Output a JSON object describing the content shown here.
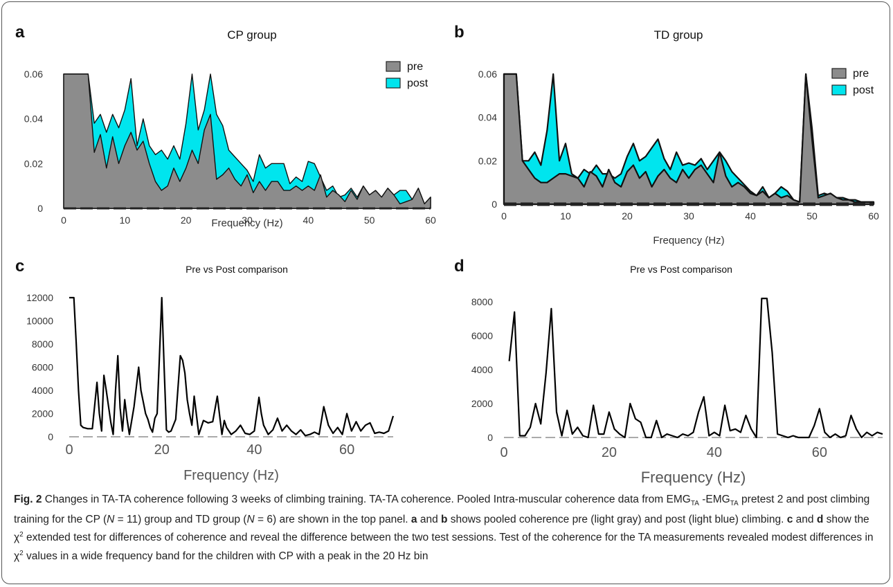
{
  "chart_data": [
    {
      "panel": "a",
      "type": "area",
      "title": "CP group",
      "xlabel": "Frequency (Hz)",
      "ylabel": "",
      "xlim": [
        0,
        60
      ],
      "ylim": [
        0,
        0.06
      ],
      "xticks": [
        "0",
        "10",
        "20",
        "30",
        "40",
        "50",
        "60"
      ],
      "yticks": [
        "0",
        "0.02",
        "0.04",
        "0.06"
      ],
      "legend": {
        "position": "top-right",
        "entries": [
          "pre",
          "post"
        ]
      },
      "series": [
        {
          "name": "pre",
          "color": "#8c8c8c",
          "x": [
            0,
            1,
            2,
            3,
            4,
            5,
            6,
            7,
            8,
            9,
            10,
            11,
            12,
            13,
            14,
            15,
            16,
            17,
            18,
            19,
            20,
            21,
            22,
            23,
            24,
            25,
            26,
            27,
            28,
            29,
            30,
            31,
            32,
            33,
            34,
            35,
            36,
            37,
            38,
            39,
            40,
            41,
            42,
            43,
            44,
            45,
            46,
            47,
            48,
            49,
            50,
            51,
            52,
            53,
            54,
            55,
            56,
            57,
            58,
            59,
            60
          ],
          "values": [
            0.06,
            0.06,
            0.06,
            0.06,
            0.06,
            0.025,
            0.033,
            0.018,
            0.032,
            0.02,
            0.028,
            0.034,
            0.026,
            0.03,
            0.02,
            0.012,
            0.008,
            0.01,
            0.018,
            0.012,
            0.018,
            0.026,
            0.02,
            0.035,
            0.042,
            0.013,
            0.015,
            0.018,
            0.013,
            0.01,
            0.015,
            0.007,
            0.012,
            0.008,
            0.012,
            0.012,
            0.008,
            0.008,
            0.01,
            0.008,
            0.01,
            0.008,
            0.015,
            0.005,
            0.008,
            0.006,
            0.003,
            0.008,
            0.004,
            0.01,
            0.006,
            0.008,
            0.005,
            0.009,
            0.006,
            0.002,
            0.003,
            0.004,
            0.009,
            0.002,
            0.005
          ]
        },
        {
          "name": "post",
          "color": "#00e5ee",
          "x": [
            0,
            1,
            2,
            3,
            4,
            5,
            6,
            7,
            8,
            9,
            10,
            11,
            12,
            13,
            14,
            15,
            16,
            17,
            18,
            19,
            20,
            21,
            22,
            23,
            24,
            25,
            26,
            27,
            28,
            29,
            30,
            31,
            32,
            33,
            34,
            35,
            36,
            37,
            38,
            39,
            40,
            41,
            42,
            43,
            44,
            45,
            46,
            47,
            48,
            49,
            50,
            51,
            52,
            53,
            54,
            55,
            56,
            57,
            58,
            59,
            60
          ],
          "values": [
            0.06,
            0.06,
            0.06,
            0.06,
            0.06,
            0.038,
            0.042,
            0.034,
            0.042,
            0.036,
            0.044,
            0.058,
            0.028,
            0.04,
            0.028,
            0.024,
            0.026,
            0.022,
            0.028,
            0.022,
            0.038,
            0.06,
            0.035,
            0.044,
            0.06,
            0.042,
            0.037,
            0.026,
            0.023,
            0.02,
            0.017,
            0.012,
            0.024,
            0.018,
            0.02,
            0.02,
            0.02,
            0.011,
            0.014,
            0.012,
            0.021,
            0.02,
            0.014,
            0.008,
            0.01,
            0.005,
            0.006,
            0.009,
            0.005,
            0.01,
            0.006,
            0.008,
            0.005,
            0.009,
            0.006,
            0.008,
            0.008,
            0.004,
            0.009,
            0.002,
            0.005
          ]
        }
      ]
    },
    {
      "panel": "b",
      "type": "area",
      "title": "TD group",
      "xlabel": "Frequency (Hz)",
      "ylabel": "",
      "xlim": [
        0,
        60
      ],
      "ylim": [
        0,
        0.06
      ],
      "xticks": [
        "0",
        "10",
        "20",
        "30",
        "40",
        "50",
        "60"
      ],
      "yticks": [
        "0",
        "0.02",
        "0.04",
        "0.06"
      ],
      "legend": {
        "position": "top-right",
        "entries": [
          "pre",
          "post"
        ]
      },
      "series": [
        {
          "name": "pre",
          "color": "#8c8c8c",
          "x": [
            0,
            1,
            2,
            3,
            4,
            5,
            6,
            7,
            8,
            9,
            10,
            11,
            12,
            13,
            14,
            15,
            16,
            17,
            18,
            19,
            20,
            21,
            22,
            23,
            24,
            25,
            26,
            27,
            28,
            29,
            30,
            31,
            32,
            33,
            34,
            35,
            36,
            37,
            38,
            39,
            40,
            41,
            42,
            43,
            44,
            45,
            46,
            47,
            48,
            49,
            50,
            51,
            52,
            53,
            54,
            55,
            56,
            57,
            58,
            59,
            60
          ],
          "values": [
            0.06,
            0.06,
            0.06,
            0.02,
            0.016,
            0.012,
            0.01,
            0.01,
            0.012,
            0.014,
            0.014,
            0.013,
            0.012,
            0.008,
            0.015,
            0.013,
            0.008,
            0.016,
            0.01,
            0.008,
            0.015,
            0.018,
            0.012,
            0.015,
            0.008,
            0.013,
            0.016,
            0.012,
            0.01,
            0.016,
            0.012,
            0.016,
            0.018,
            0.014,
            0.01,
            0.024,
            0.013,
            0.008,
            0.01,
            0.008,
            0.005,
            0.004,
            0.006,
            0.003,
            0.005,
            0.003,
            0.004,
            0.002,
            0.001,
            0.06,
            0.03,
            0.003,
            0.004,
            0.005,
            0.003,
            0.002,
            0.002,
            0.001,
            0.001,
            0.001,
            0.001
          ]
        },
        {
          "name": "post",
          "color": "#00e5ee",
          "x": [
            0,
            1,
            2,
            3,
            4,
            5,
            6,
            7,
            8,
            9,
            10,
            11,
            12,
            13,
            14,
            15,
            16,
            17,
            18,
            19,
            20,
            21,
            22,
            23,
            24,
            25,
            26,
            27,
            28,
            29,
            30,
            31,
            32,
            33,
            34,
            35,
            36,
            37,
            38,
            39,
            40,
            41,
            42,
            43,
            44,
            45,
            46,
            47,
            48,
            49,
            50,
            51,
            52,
            53,
            54,
            55,
            56,
            57,
            58,
            59,
            60
          ],
          "values": [
            0.06,
            0.06,
            0.06,
            0.02,
            0.02,
            0.024,
            0.018,
            0.034,
            0.06,
            0.02,
            0.028,
            0.014,
            0.012,
            0.016,
            0.014,
            0.018,
            0.014,
            0.014,
            0.012,
            0.014,
            0.022,
            0.028,
            0.02,
            0.022,
            0.026,
            0.03,
            0.021,
            0.016,
            0.024,
            0.018,
            0.019,
            0.018,
            0.021,
            0.016,
            0.02,
            0.024,
            0.02,
            0.015,
            0.012,
            0.009,
            0.006,
            0.004,
            0.008,
            0.003,
            0.005,
            0.008,
            0.006,
            0.002,
            0.001,
            0.06,
            0.035,
            0.004,
            0.005,
            0.004,
            0.003,
            0.003,
            0.002,
            0.002,
            0.001,
            0.001,
            0.001
          ]
        }
      ]
    },
    {
      "panel": "c",
      "type": "line",
      "title": "Pre vs Post comparison",
      "xlabel": "Frequency (Hz)",
      "ylabel": "",
      "xlim": [
        0,
        70
      ],
      "ylim": [
        0,
        12000
      ],
      "xticks": [
        "0",
        "20",
        "40",
        "60"
      ],
      "yticks": [
        "0",
        "2000",
        "4000",
        "6000",
        "8000",
        "10000",
        "12000"
      ],
      "series": [
        {
          "name": "",
          "color": "#000000",
          "x": [
            0,
            0.5,
            1,
            1.5,
            2,
            2.5,
            3,
            4,
            5,
            6,
            6.5,
            7,
            7.5,
            8,
            9,
            9.5,
            10,
            10.5,
            11,
            11.5,
            12,
            12.5,
            13,
            14,
            15,
            15.5,
            16,
            16.5,
            17,
            17.5,
            18,
            18.5,
            19,
            20,
            20.5,
            21,
            21.5,
            22,
            23,
            24,
            24.5,
            25,
            25.5,
            26,
            26.5,
            27,
            28,
            29,
            30,
            31,
            32,
            33,
            33.5,
            34,
            35,
            36,
            37,
            38,
            39,
            40,
            41,
            41.5,
            42,
            43,
            44,
            45,
            46,
            47,
            48,
            49,
            50,
            51,
            52,
            53,
            54,
            55,
            56,
            57,
            58,
            59,
            60,
            61,
            62,
            63,
            64,
            65,
            66,
            67,
            68,
            69,
            70
          ],
          "values": [
            12000,
            12000,
            12000,
            8200,
            4000,
            1000,
            800,
            700,
            700,
            4700,
            2000,
            500,
            5300,
            4000,
            1200,
            200,
            4000,
            7000,
            2500,
            500,
            3200,
            1500,
            200,
            2600,
            6000,
            4000,
            3000,
            2000,
            1500,
            800,
            400,
            1600,
            2000,
            12000,
            6000,
            600,
            400,
            500,
            1500,
            7000,
            6600,
            5500,
            3200,
            2000,
            1000,
            3500,
            200,
            1400,
            1200,
            1300,
            3500,
            200,
            1400,
            800,
            200,
            500,
            1000,
            300,
            200,
            500,
            3400,
            2000,
            1000,
            200,
            600,
            1600,
            500,
            1000,
            500,
            200,
            600,
            100,
            200,
            400,
            200,
            2600,
            1000,
            300,
            800,
            200,
            2000,
            500,
            1300,
            500,
            1000,
            1200,
            300,
            400,
            300,
            500,
            1800
          ]
        }
      ]
    },
    {
      "panel": "d",
      "type": "line",
      "title": "Pre vs Post comparison",
      "xlabel": "Frequency (Hz)",
      "ylabel": "",
      "xlim": [
        0,
        72
      ],
      "ylim": [
        0,
        8000
      ],
      "xticks": [
        "0",
        "20",
        "40",
        "60"
      ],
      "yticks": [
        "0",
        "2000",
        "4000",
        "6000",
        "8000"
      ],
      "series": [
        {
          "name": "",
          "color": "#000000",
          "x": [
            1,
            2,
            3,
            4,
            5,
            6,
            7,
            8,
            9,
            10,
            11,
            12,
            13,
            14,
            15,
            16,
            17,
            18,
            19,
            20,
            21,
            22,
            23,
            24,
            25,
            26,
            27,
            28,
            29,
            30,
            31,
            32,
            33,
            34,
            35,
            36,
            37,
            38,
            39,
            40,
            41,
            42,
            43,
            44,
            45,
            46,
            47,
            48,
            49,
            50,
            51,
            52,
            53,
            54,
            55,
            56,
            57,
            58,
            59,
            60,
            61,
            62,
            63,
            64,
            65,
            66,
            67,
            68,
            69,
            70,
            71,
            72
          ],
          "values": [
            4500,
            7400,
            100,
            100,
            600,
            2000,
            800,
            3800,
            7600,
            1500,
            100,
            1600,
            200,
            600,
            100,
            0,
            1900,
            200,
            200,
            1500,
            500,
            200,
            0,
            2000,
            1100,
            900,
            0,
            0,
            1000,
            0,
            200,
            100,
            0,
            200,
            100,
            300,
            1500,
            2400,
            100,
            300,
            100,
            1900,
            400,
            500,
            300,
            1300,
            500,
            0,
            8200,
            8200,
            5000,
            200,
            100,
            0,
            100,
            0,
            0,
            0,
            700,
            1700,
            300,
            0,
            200,
            0,
            100,
            1300,
            500,
            0,
            300,
            100,
            300,
            200
          ]
        }
      ]
    }
  ],
  "caption": {
    "fig_label": "Fig. 2",
    "p1": "Changes in TA-TA coherence following 3 weeks of climbing training. TA-TA coherence. Pooled Intra-muscular coherence data from EMG",
    "sub_ta": "TA",
    "p2": "-EMG",
    "p3": "pretest 2 and post climbing training for the CP (",
    "n_eq1": "N",
    "p4": "= 11) group and TD group (",
    "n_eq2": "N",
    "p5": "= 6) are shown in the top panel.",
    "a": "a",
    "and1": "and",
    "b": "b",
    "p6": "shows pooled coherence pre (light gray) and post (light blue) climbing.",
    "c": "c",
    "and2": "and",
    "d": "d",
    "p7": "show the χ",
    "sup2": "2",
    "p8": "extended test for differences of coherence and reveal the difference between the two test sessions. Test of the coherence for the TA measurements revealed modest differences in χ",
    "p9": "values in a wide frequency band for the children with CP with a peak in the 20 Hz bin"
  }
}
